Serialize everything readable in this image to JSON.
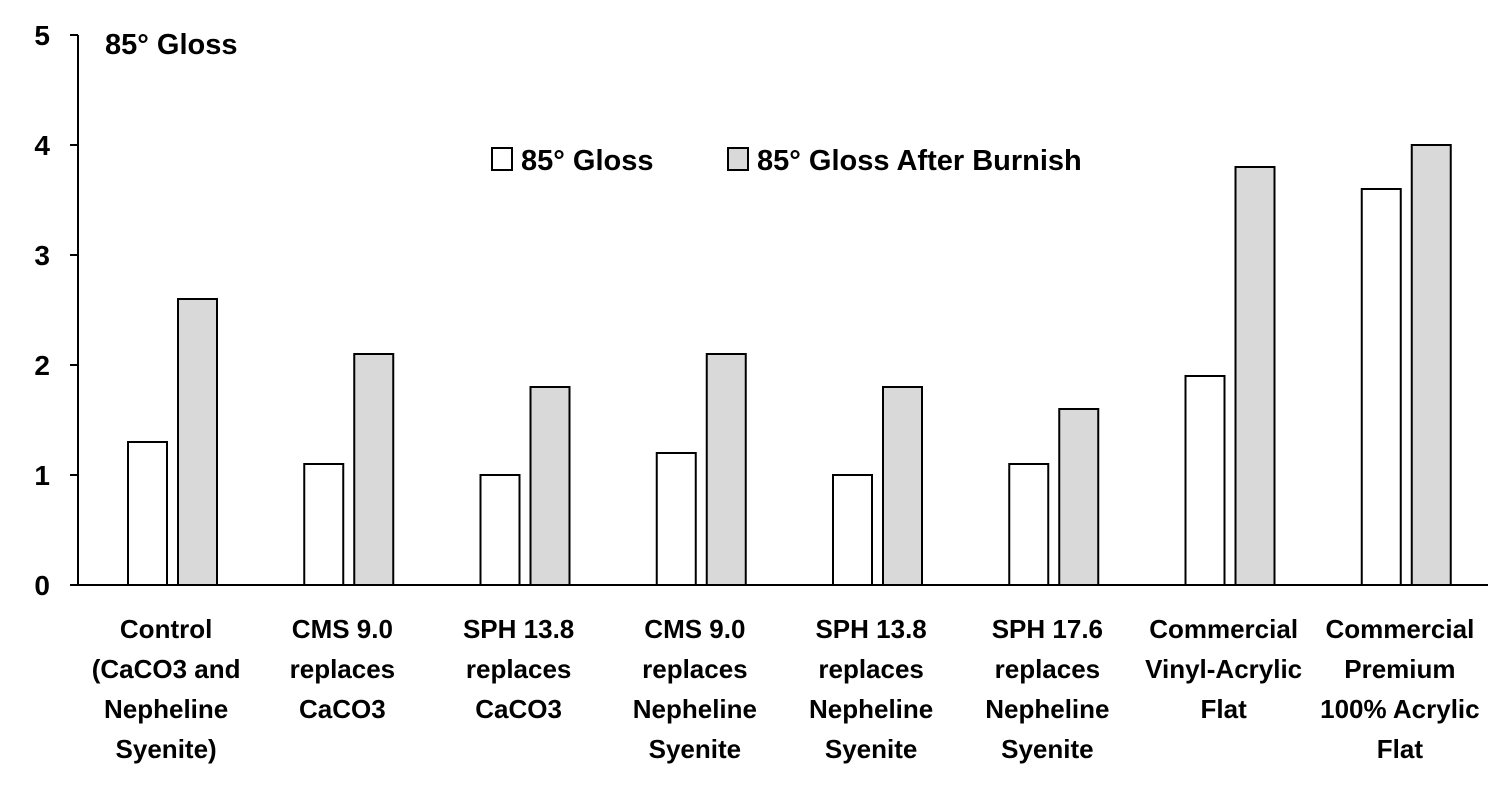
{
  "chart_data": {
    "type": "bar",
    "title": "85° Gloss",
    "xlabel": "",
    "ylabel": "",
    "ylim": [
      0,
      5
    ],
    "yticks": [
      "0",
      "1",
      "2",
      "3",
      "4",
      "5"
    ],
    "grid": false,
    "legend_position": "top-center",
    "categories": [
      [
        "Control",
        "(CaCO3 and",
        "Nepheline",
        "Syenite)"
      ],
      [
        "CMS 9.0",
        "replaces",
        "CaCO3"
      ],
      [
        "SPH 13.8",
        "replaces",
        "CaCO3"
      ],
      [
        "CMS 9.0",
        "replaces",
        "Nepheline",
        "Syenite"
      ],
      [
        "SPH 13.8",
        "replaces",
        "Nepheline",
        "Syenite"
      ],
      [
        "SPH 17.6",
        "replaces",
        "Nepheline",
        "Syenite"
      ],
      [
        "Commercial",
        "Vinyl-Acrylic",
        "Flat"
      ],
      [
        "Commercial",
        "Premium",
        "100% Acrylic",
        "Flat"
      ]
    ],
    "series": [
      {
        "name": "85° Gloss",
        "color": "#ffffff",
        "values": [
          1.3,
          1.1,
          1.0,
          1.2,
          1.0,
          1.1,
          1.9,
          3.6
        ]
      },
      {
        "name": "85° Gloss After Burnish",
        "color": "#d9d9d9",
        "values": [
          2.6,
          2.1,
          1.8,
          2.1,
          1.8,
          1.6,
          3.8,
          4.0
        ]
      }
    ]
  }
}
